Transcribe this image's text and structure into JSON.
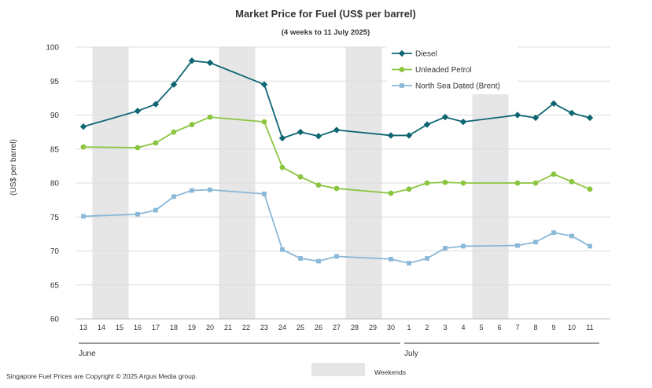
{
  "chart_data": {
    "type": "line",
    "title": "Market Price for Fuel (US$ per barrel)",
    "subtitle": "(4 weeks to 11 July 2025)",
    "ylabel": "(US$ per barrel)",
    "xlabel": "",
    "ylim": [
      60,
      100
    ],
    "yticks": [
      60,
      65,
      70,
      75,
      80,
      85,
      90,
      95,
      100
    ],
    "grid": true,
    "legend_position": "top-right",
    "categories": [
      "13",
      "14",
      "15",
      "16",
      "17",
      "18",
      "19",
      "20",
      "21",
      "22",
      "23",
      "24",
      "25",
      "26",
      "27",
      "28",
      "29",
      "30",
      "1",
      "2",
      "3",
      "4",
      "5",
      "6",
      "7",
      "8",
      "9",
      "10",
      "11"
    ],
    "month_labels": [
      {
        "label": "June",
        "start_index": 0,
        "end_index": 17
      },
      {
        "label": "July",
        "start_index": 18,
        "end_index": 28
      }
    ],
    "weekend_ranges": [
      [
        1,
        2
      ],
      [
        8,
        9
      ],
      [
        15,
        16
      ],
      [
        22,
        23
      ]
    ],
    "weekend_label": "Weekends",
    "series": [
      {
        "name": "Diesel",
        "color": "#0e6673",
        "marker": "diamond",
        "values": [
          88.3,
          null,
          null,
          90.6,
          91.6,
          94.5,
          98.0,
          97.7,
          null,
          null,
          94.5,
          86.6,
          87.5,
          86.9,
          87.8,
          null,
          null,
          87.0,
          87.0,
          88.6,
          89.7,
          89.0,
          null,
          null,
          90.0,
          89.6,
          91.7,
          90.3,
          89.6
        ]
      },
      {
        "name": "Unleaded Petrol",
        "color": "#8bc53f",
        "marker": "circle",
        "values": [
          85.3,
          null,
          null,
          85.2,
          85.9,
          87.5,
          88.6,
          89.7,
          null,
          null,
          89.0,
          82.3,
          80.9,
          79.7,
          79.2,
          null,
          null,
          78.5,
          79.1,
          80.0,
          80.1,
          80.0,
          null,
          null,
          80.0,
          80.0,
          81.3,
          80.2,
          79.1
        ]
      },
      {
        "name": "North Sea Dated (Brent)",
        "color": "#8ab8d8",
        "marker": "square",
        "values": [
          75.1,
          null,
          null,
          75.4,
          76.0,
          78.0,
          78.9,
          79.0,
          null,
          null,
          78.4,
          70.2,
          68.9,
          68.5,
          69.2,
          null,
          null,
          68.8,
          68.2,
          68.9,
          70.4,
          70.7,
          null,
          null,
          70.8,
          71.3,
          72.7,
          72.2,
          70.7
        ]
      }
    ]
  },
  "footer": {
    "copyright": "Singapore Fuel Prices are Copyright © 2025 Argus Media group."
  }
}
